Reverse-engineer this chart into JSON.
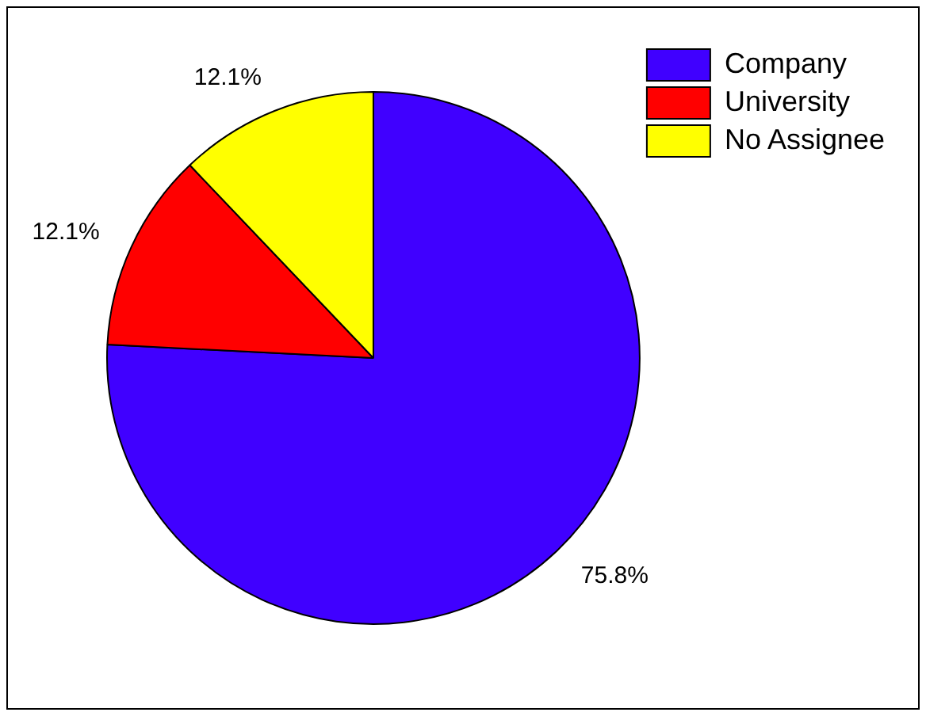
{
  "chart_data": {
    "type": "pie",
    "categories": [
      "Company",
      "University",
      "No Assignee"
    ],
    "values": [
      75.8,
      12.1,
      12.1
    ],
    "colors": [
      "#4000ff",
      "#ff0000",
      "#ffff00"
    ],
    "value_labels": [
      "75.8%",
      "12.1%",
      "12.1%"
    ],
    "legend": "top right"
  }
}
